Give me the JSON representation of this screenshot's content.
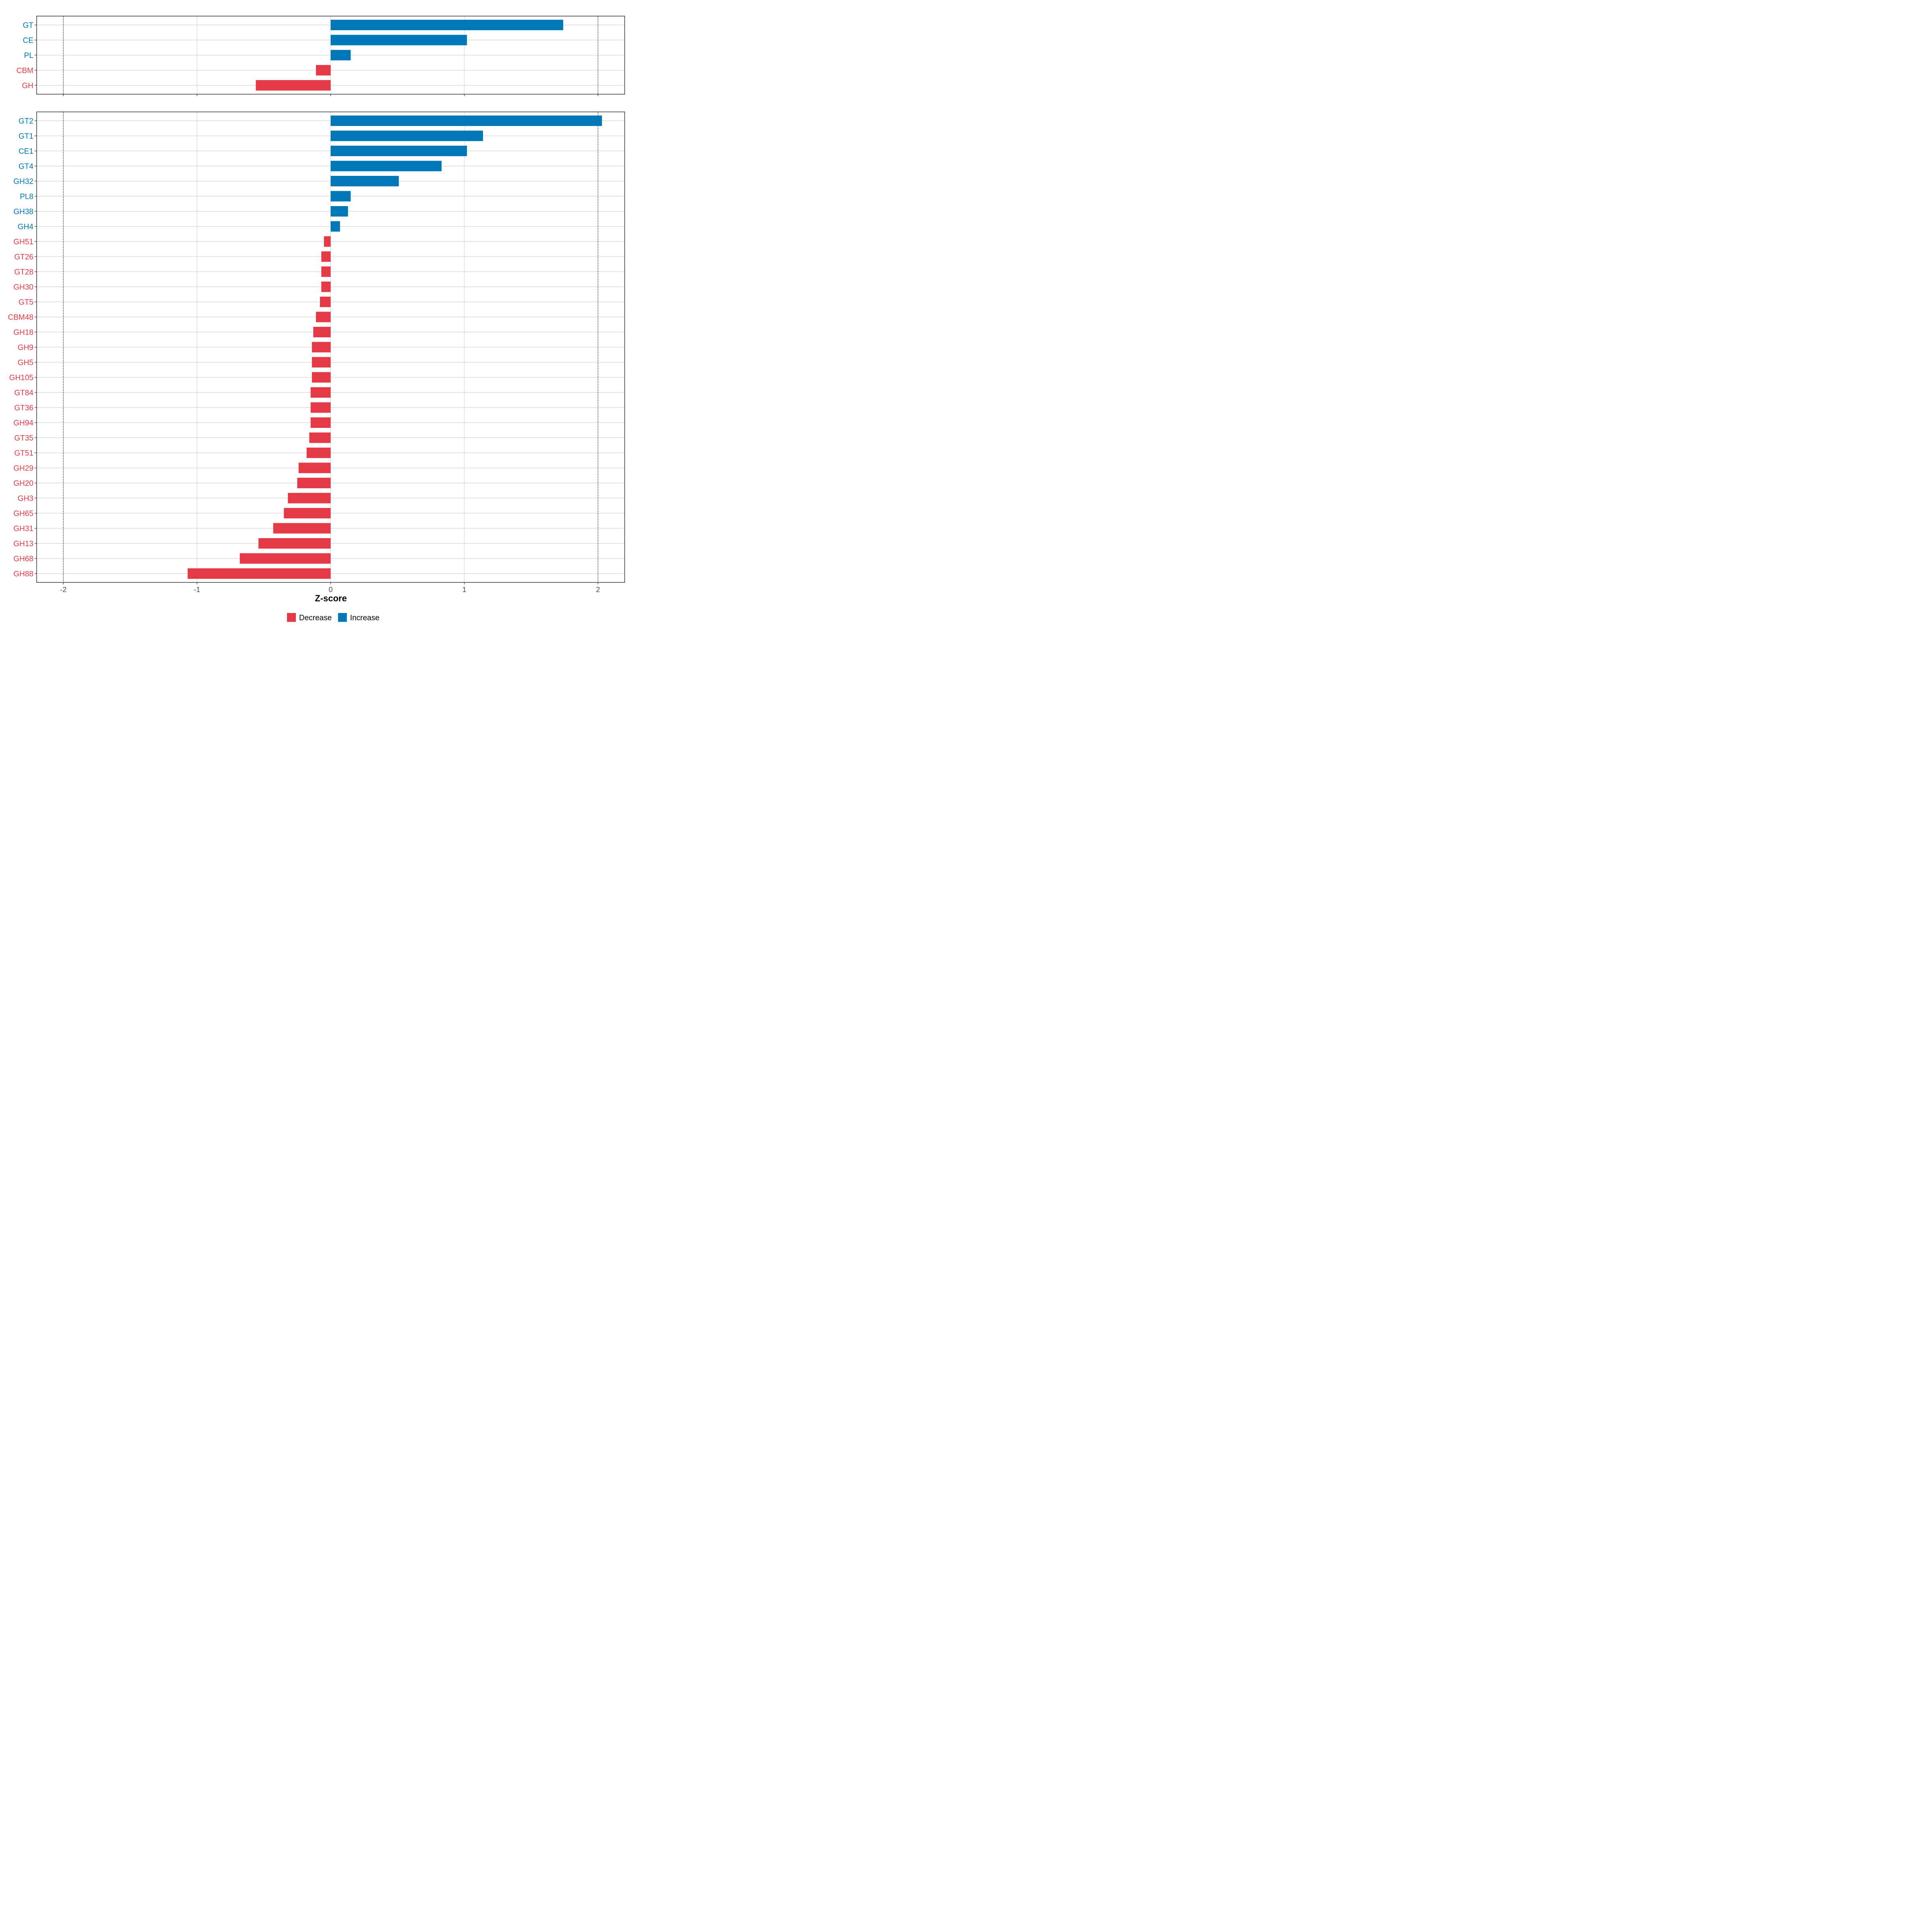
{
  "chart_data": [
    {
      "type": "bar",
      "orientation": "horizontal",
      "panel": "top",
      "categories": [
        "GT",
        "CE",
        "PL",
        "CBM",
        "GH"
      ],
      "values": [
        1.74,
        1.02,
        0.15,
        -0.11,
        -0.56
      ],
      "xlim": [
        -2.2,
        2.2
      ],
      "xticks": [
        -2,
        -1,
        0,
        1,
        2
      ],
      "reference_lines": [
        -2,
        2
      ],
      "grid": true
    },
    {
      "type": "bar",
      "orientation": "horizontal",
      "panel": "bottom",
      "categories": [
        "GT2",
        "GT1",
        "CE1",
        "GT4",
        "GH32",
        "PL8",
        "GH38",
        "GH4",
        "GH51",
        "GT26",
        "GT28",
        "GH30",
        "GT5",
        "CBM48",
        "GH18",
        "GH9",
        "GH5",
        "GH105",
        "GT84",
        "GT36",
        "GH94",
        "GT35",
        "GT51",
        "GH29",
        "GH20",
        "GH3",
        "GH65",
        "GH31",
        "GH13",
        "GH68",
        "GH88"
      ],
      "values": [
        2.03,
        1.14,
        1.02,
        0.83,
        0.51,
        0.15,
        0.13,
        0.07,
        -0.05,
        -0.07,
        -0.07,
        -0.07,
        -0.08,
        -0.11,
        -0.13,
        -0.14,
        -0.14,
        -0.14,
        -0.15,
        -0.15,
        -0.15,
        -0.16,
        -0.18,
        -0.24,
        -0.25,
        -0.32,
        -0.35,
        -0.43,
        -0.54,
        -0.68,
        -1.07
      ],
      "xlim": [
        -2.2,
        2.2
      ],
      "xticks": [
        -2,
        -1,
        0,
        1,
        2
      ],
      "reference_lines": [
        -2,
        2
      ],
      "grid": true
    }
  ],
  "xlabel": "Z-score",
  "colors": {
    "increase": "#0077b6",
    "decrease": "#e63946",
    "grid": "#d9d9d9",
    "reference": "#000000"
  },
  "legend": {
    "position": "bottom",
    "items": [
      {
        "label": "Decrease",
        "color": "#e63946"
      },
      {
        "label": "Increase",
        "color": "#0077b6"
      }
    ]
  }
}
